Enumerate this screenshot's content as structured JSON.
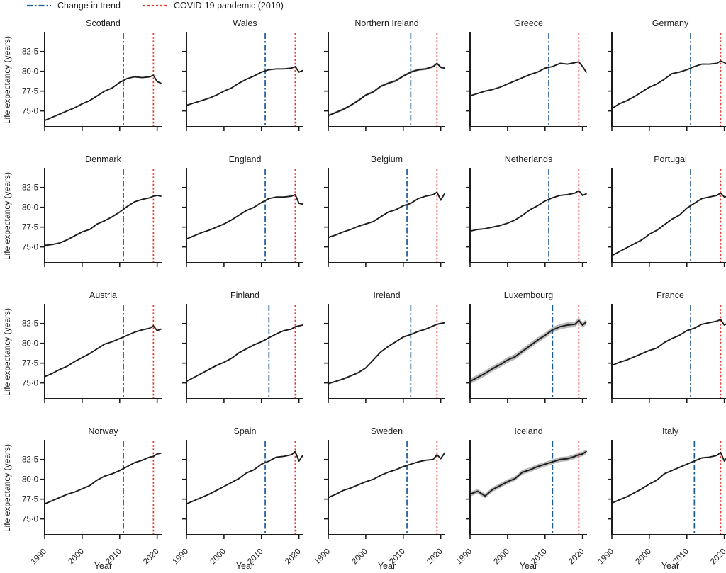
{
  "legend": {
    "items_note": "two reference-line entries"
  },
  "chart_data": {
    "type": "line",
    "title": "",
    "xlabel": "Year",
    "ylabel": "Life expectancy (years)",
    "grid": "off",
    "layout": {
      "rows": 4,
      "cols": 5
    },
    "xlim": [
      1990,
      2021.2
    ],
    "ylim": [
      73.0,
      84.8
    ],
    "x_ticks": [
      1990,
      2000,
      2010,
      2020
    ],
    "x_tick_labels": [
      "1990",
      "2000",
      "2010",
      "2020"
    ],
    "y_ticks": [
      75,
      77.5,
      80,
      82.5
    ],
    "y_tick_labels": [
      "75·0",
      "77·5",
      "80·0",
      "82·5"
    ],
    "reference_lines": {
      "trend": {
        "label": "Change in trend",
        "color": "#1f5b94",
        "style": "dashdot"
      },
      "covid": {
        "label": "COVID-19 pandemic (2019)",
        "color": "#e23b2e",
        "style": "dotted",
        "year": 2019
      }
    },
    "line_color": "#1c1c1c",
    "band_color": "#b9b9b9",
    "years": [
      1990,
      1992,
      1994,
      1996,
      1998,
      2000,
      2002,
      2004,
      2006,
      2008,
      2010,
      2012,
      2014,
      2016,
      2018,
      2019,
      2020,
      2021
    ],
    "series": [
      {
        "name": "Scotland",
        "trend_change_year": 2011,
        "ci": 0.06,
        "values": [
          73.8,
          74.2,
          74.6,
          75.0,
          75.4,
          75.9,
          76.3,
          76.9,
          77.5,
          77.9,
          78.6,
          79.1,
          79.3,
          79.2,
          79.3,
          79.5,
          78.7,
          78.5
        ]
      },
      {
        "name": "Wales",
        "trend_change_year": 2011,
        "ci": 0.06,
        "values": [
          75.7,
          76.0,
          76.3,
          76.6,
          77.0,
          77.5,
          77.9,
          78.5,
          79.0,
          79.4,
          79.9,
          80.2,
          80.3,
          80.3,
          80.4,
          80.6,
          79.9,
          80.1
        ]
      },
      {
        "name": "Northern Ireland",
        "trend_change_year": 2012,
        "ci": 0.15,
        "values": [
          74.4,
          74.8,
          75.2,
          75.7,
          76.3,
          77.0,
          77.4,
          78.1,
          78.5,
          78.8,
          79.4,
          79.9,
          80.2,
          80.3,
          80.6,
          81.0,
          80.5,
          80.4
        ]
      },
      {
        "name": "Greece",
        "trend_change_year": 2011,
        "ci": 0.04,
        "values": [
          76.9,
          77.2,
          77.5,
          77.7,
          78.0,
          78.4,
          78.8,
          79.2,
          79.6,
          79.9,
          80.4,
          80.6,
          81.0,
          80.9,
          81.1,
          81.2,
          80.6,
          79.9
        ]
      },
      {
        "name": "Germany",
        "trend_change_year": 2011,
        "ci": 0.03,
        "values": [
          75.3,
          75.9,
          76.3,
          76.8,
          77.4,
          78.0,
          78.4,
          79.0,
          79.7,
          79.9,
          80.2,
          80.6,
          80.9,
          80.9,
          81.0,
          81.3,
          81.1,
          80.8
        ]
      },
      {
        "name": "Denmark",
        "trend_change_year": 2011,
        "ci": 0.07,
        "values": [
          75.2,
          75.3,
          75.5,
          75.9,
          76.4,
          76.9,
          77.2,
          77.9,
          78.3,
          78.8,
          79.4,
          80.1,
          80.7,
          81.0,
          81.2,
          81.4,
          81.5,
          81.4
        ]
      },
      {
        "name": "England",
        "trend_change_year": 2011,
        "ci": 0.03,
        "values": [
          76.0,
          76.4,
          76.8,
          77.1,
          77.5,
          77.9,
          78.4,
          79.0,
          79.6,
          80.0,
          80.6,
          81.1,
          81.3,
          81.3,
          81.4,
          81.6,
          80.5,
          80.4
        ]
      },
      {
        "name": "Belgium",
        "trend_change_year": 2011,
        "ci": 0.04,
        "values": [
          76.2,
          76.5,
          76.9,
          77.2,
          77.6,
          77.9,
          78.2,
          78.8,
          79.4,
          79.7,
          80.2,
          80.5,
          81.1,
          81.4,
          81.6,
          81.9,
          80.9,
          81.7
        ]
      },
      {
        "name": "Netherlands",
        "trend_change_year": 2011,
        "ci": 0.04,
        "values": [
          77.0,
          77.2,
          77.3,
          77.5,
          77.7,
          78.0,
          78.4,
          79.0,
          79.7,
          80.2,
          80.8,
          81.2,
          81.5,
          81.6,
          81.8,
          82.1,
          81.5,
          81.7
        ]
      },
      {
        "name": "Portugal",
        "trend_change_year": 2011,
        "ci": 0.06,
        "values": [
          73.9,
          74.4,
          74.9,
          75.4,
          75.9,
          76.6,
          77.1,
          77.8,
          78.5,
          79.0,
          79.9,
          80.5,
          81.1,
          81.3,
          81.5,
          81.8,
          81.3,
          81.4
        ]
      },
      {
        "name": "Austria",
        "trend_change_year": 2011,
        "ci": 0.04,
        "values": [
          75.8,
          76.2,
          76.7,
          77.1,
          77.7,
          78.2,
          78.7,
          79.3,
          79.9,
          80.2,
          80.6,
          81.0,
          81.4,
          81.7,
          81.9,
          82.2,
          81.6,
          81.8
        ]
      },
      {
        "name": "Finland",
        "trend_change_year": 2012,
        "ci": 0.07,
        "values": [
          75.2,
          75.7,
          76.2,
          76.7,
          77.2,
          77.6,
          78.1,
          78.8,
          79.3,
          79.8,
          80.2,
          80.7,
          81.2,
          81.6,
          81.8,
          82.1,
          82.2,
          82.3
        ]
      },
      {
        "name": "Ireland",
        "trend_change_year": 2012,
        "ci": 0.1,
        "values": [
          74.9,
          75.2,
          75.5,
          75.9,
          76.3,
          76.9,
          77.9,
          78.9,
          79.6,
          80.2,
          80.8,
          81.1,
          81.5,
          81.8,
          82.2,
          82.4,
          82.5,
          82.6
        ]
      },
      {
        "name": "Luxembourg",
        "trend_change_year": 2012,
        "ci": 0.35,
        "values": [
          75.2,
          75.7,
          76.2,
          76.8,
          77.3,
          77.9,
          78.3,
          79.0,
          79.7,
          80.4,
          81.0,
          81.7,
          82.1,
          82.3,
          82.4,
          82.9,
          82.3,
          82.7
        ]
      },
      {
        "name": "France",
        "trend_change_year": 2011,
        "ci": 0.03,
        "values": [
          77.2,
          77.6,
          77.9,
          78.3,
          78.7,
          79.1,
          79.4,
          80.1,
          80.6,
          81.0,
          81.6,
          81.9,
          82.4,
          82.6,
          82.8,
          83.0,
          82.3,
          82.6
        ]
      },
      {
        "name": "Norway",
        "trend_change_year": 2011,
        "ci": 0.05,
        "values": [
          76.9,
          77.3,
          77.7,
          78.1,
          78.4,
          78.8,
          79.2,
          79.9,
          80.4,
          80.7,
          81.1,
          81.6,
          82.1,
          82.4,
          82.8,
          82.9,
          83.2,
          83.3
        ]
      },
      {
        "name": "Spain",
        "trend_change_year": 2011,
        "ci": 0.03,
        "values": [
          76.9,
          77.3,
          77.7,
          78.1,
          78.6,
          79.1,
          79.6,
          80.1,
          80.8,
          81.2,
          81.9,
          82.3,
          82.8,
          82.9,
          83.1,
          83.5,
          82.3,
          83.0
        ]
      },
      {
        "name": "Sweden",
        "trend_change_year": 2011,
        "ci": 0.04,
        "values": [
          77.7,
          78.1,
          78.6,
          78.9,
          79.3,
          79.7,
          80.0,
          80.5,
          80.9,
          81.2,
          81.6,
          81.9,
          82.2,
          82.4,
          82.5,
          83.1,
          82.6,
          83.3
        ]
      },
      {
        "name": "Iceland",
        "trend_change_year": 2012,
        "ci": 0.3,
        "values": [
          78.1,
          78.5,
          77.9,
          78.7,
          79.2,
          79.7,
          80.1,
          80.9,
          81.2,
          81.6,
          81.9,
          82.2,
          82.5,
          82.6,
          82.9,
          83.1,
          83.2,
          83.5
        ]
      },
      {
        "name": "Italy",
        "trend_change_year": 2012,
        "ci": 0.03,
        "values": [
          77.0,
          77.4,
          77.8,
          78.3,
          78.8,
          79.4,
          79.9,
          80.7,
          81.1,
          81.5,
          81.9,
          82.3,
          82.7,
          82.8,
          83.0,
          83.4,
          82.3,
          82.9
        ]
      }
    ]
  }
}
